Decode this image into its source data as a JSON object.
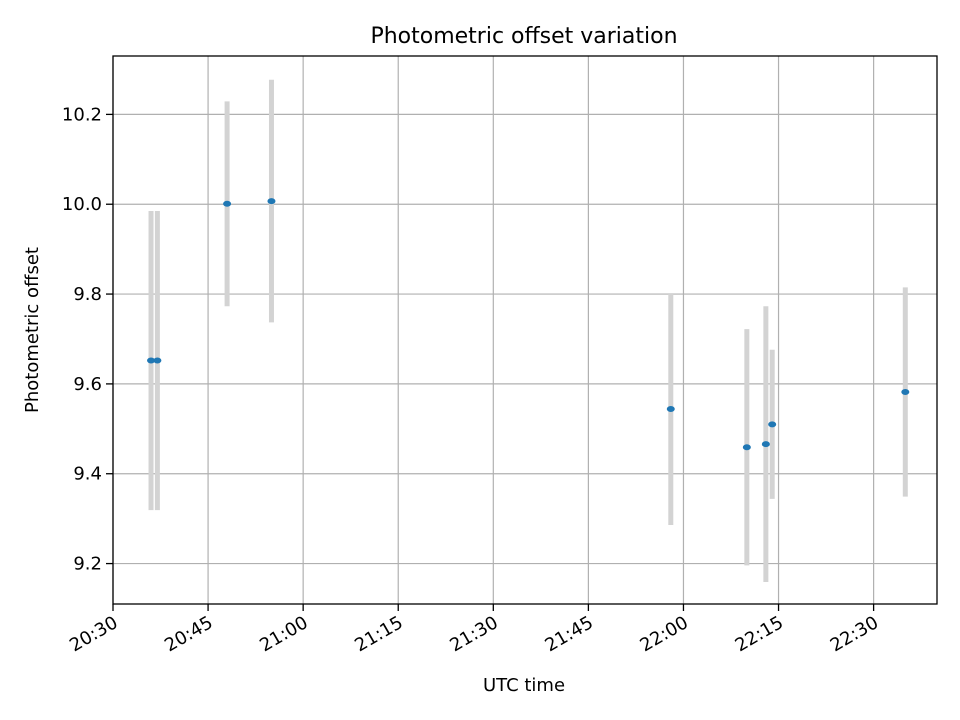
{
  "chart_data": {
    "type": "scatter",
    "title": "Photometric offset variation",
    "xlabel": "UTC time",
    "ylabel": "Photometric offset",
    "grid": true,
    "xlim": [
      "20:30",
      "22:40"
    ],
    "ylim": [
      9.11,
      10.33
    ],
    "x_ticks": [
      "20:30",
      "20:45",
      "21:00",
      "21:15",
      "21:30",
      "21:45",
      "22:00",
      "22:15",
      "22:30"
    ],
    "y_ticks": [
      "9.2",
      "9.4",
      "9.6",
      "9.8",
      "10.0",
      "10.2"
    ],
    "marker_color": "#1f77b4",
    "errorbar_color": "#d3d3d3",
    "points": [
      {
        "t": "20:36",
        "y": 9.652,
        "err": 0.333
      },
      {
        "t": "20:37",
        "y": 9.652,
        "err": 0.333
      },
      {
        "t": "20:48",
        "y": 10.001,
        "err": 0.228
      },
      {
        "t": "20:55",
        "y": 10.007,
        "err": 0.27
      },
      {
        "t": "21:58",
        "y": 9.544,
        "err": 0.258
      },
      {
        "t": "22:10",
        "y": 9.459,
        "err": 0.263
      },
      {
        "t": "22:13",
        "y": 9.466,
        "err": 0.307
      },
      {
        "t": "22:14",
        "y": 9.51,
        "err": 0.166
      },
      {
        "t": "22:35",
        "y": 9.582,
        "err": 0.233
      }
    ]
  }
}
